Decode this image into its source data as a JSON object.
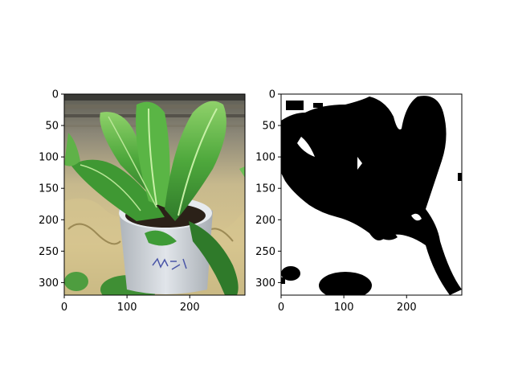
{
  "figure": {
    "panels": [
      {
        "name": "plant-photo",
        "xlim": [
          0,
          288
        ],
        "ylim": [
          320,
          0
        ],
        "xticks": [
          "0",
          "100",
          "200"
        ],
        "yticks": [
          "0",
          "50",
          "100",
          "150",
          "200",
          "250",
          "300"
        ],
        "content": "plant-photo-icon"
      },
      {
        "name": "binary-mask",
        "xlim": [
          0,
          288
        ],
        "ylim": [
          320,
          0
        ],
        "xticks": [
          "0",
          "100",
          "200"
        ],
        "yticks": [
          "0",
          "50",
          "100",
          "150",
          "200",
          "250",
          "300"
        ],
        "content": "binary-mask-icon"
      }
    ],
    "colors": {
      "leaf_dark": "#2f7a2a",
      "leaf_mid": "#4ea83c",
      "leaf_light": "#8fd16a",
      "pot": "#c9cfd6",
      "soil": "#2b2118",
      "background_warm": "#c7b98d",
      "mask": "#000000"
    }
  }
}
